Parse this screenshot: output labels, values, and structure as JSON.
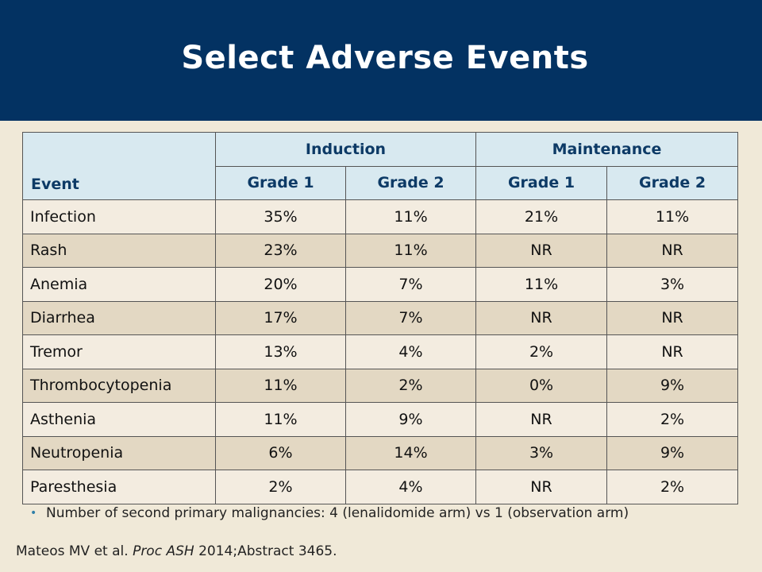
{
  "header": {
    "title": "Select Adverse Events"
  },
  "table": {
    "event_header": "Event",
    "groups": [
      "Induction",
      "Maintenance"
    ],
    "subheaders": [
      "Grade 1",
      "Grade 2",
      "Grade 1",
      "Grade 2"
    ],
    "rows": [
      {
        "event": "Infection",
        "values": [
          "35%",
          "11%",
          "21%",
          "11%"
        ]
      },
      {
        "event": "Rash",
        "values": [
          "23%",
          "11%",
          "NR",
          "NR"
        ]
      },
      {
        "event": "Anemia",
        "values": [
          "20%",
          "7%",
          "11%",
          "3%"
        ]
      },
      {
        "event": "Diarrhea",
        "values": [
          "17%",
          "7%",
          "NR",
          "NR"
        ]
      },
      {
        "event": "Tremor",
        "values": [
          "13%",
          "4%",
          "2%",
          "NR"
        ]
      },
      {
        "event": "Thrombocytopenia",
        "values": [
          "11%",
          "2%",
          "0%",
          "9%"
        ]
      },
      {
        "event": "Asthenia",
        "values": [
          "11%",
          "9%",
          "NR",
          "2%"
        ]
      },
      {
        "event": "Neutropenia",
        "values": [
          "6%",
          "14%",
          "3%",
          "9%"
        ]
      },
      {
        "event": "Paresthesia",
        "values": [
          "2%",
          "4%",
          "NR",
          "2%"
        ]
      }
    ]
  },
  "bullet": {
    "symbol": "•",
    "text": "Number of second primary malignancies: 4 (lenalidomide arm) vs 1 (observation arm)"
  },
  "citation": {
    "prefix": "Mateos MV et al. ",
    "journal": "Proc ASH",
    "suffix": " 2014;Abstract 3465."
  },
  "colors": {
    "header_bg": "#033262",
    "page_bg": "#f0e9d8",
    "table_header_bg": "#d8e9f0",
    "row_odd": "#f3ece0",
    "row_even": "#e3d8c3"
  }
}
